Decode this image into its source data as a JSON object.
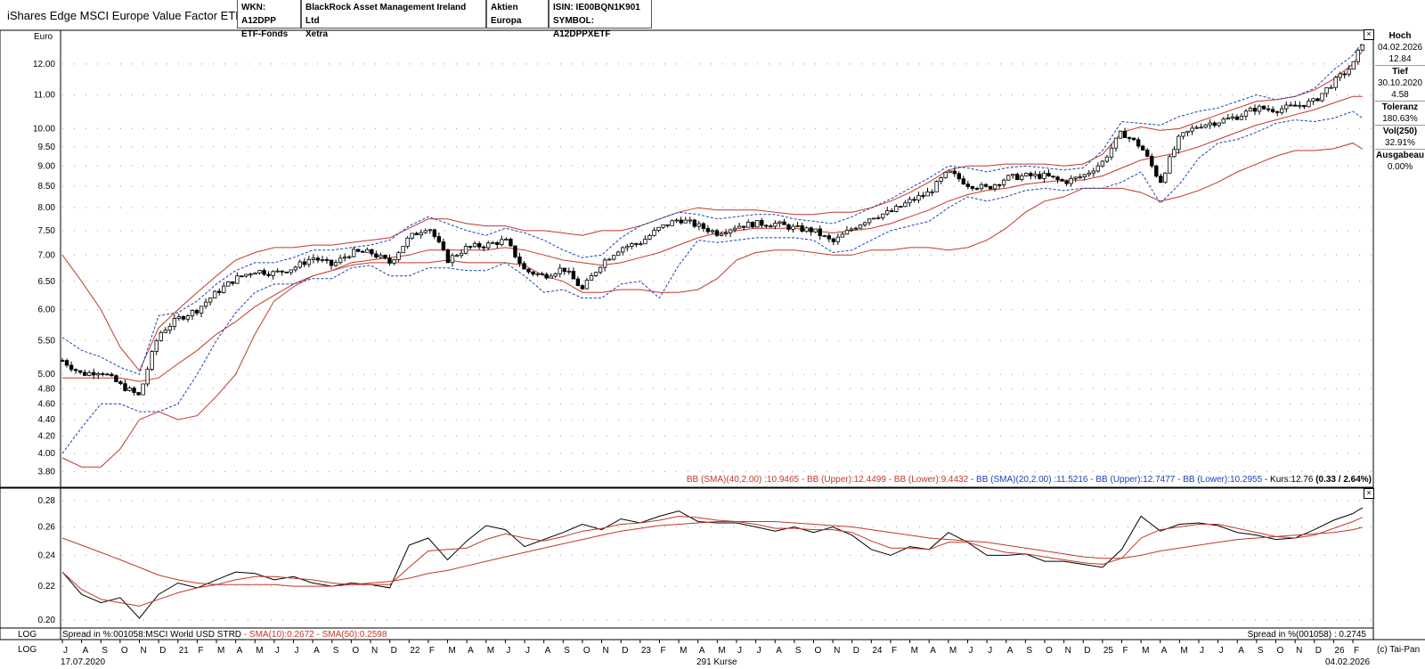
{
  "header": {
    "title": "iShares Edge MSCI Europe Value Factor ETF",
    "wkn": "WKN: A12DPP",
    "type": "ETF-Fonds",
    "issuer": "BlackRock Asset Management Ireland Ltd",
    "exchange": "Xetra",
    "category": "Aktien Europa",
    "isin": "ISIN: IE00BQN1K901",
    "symbol": "SYMBOL: A12DPPXETF"
  },
  "side_panel": {
    "high_label": "Hoch",
    "high_date": "04.02.2026",
    "high_value": "12.84",
    "low_label": "Tief",
    "low_date": "30.10.2020",
    "low_value": "4.58",
    "tol_label": "Toleranz",
    "tol_value": "180.63%",
    "vol_label": "Vol(250)",
    "vol_value": "32.91%",
    "fee_label": "Ausgabeau",
    "fee_value": "0.00%"
  },
  "legend_top": {
    "bb40": "BB (SMA)(40,2.00) :10.9465 - BB (Upper):12.4499 - BB (Lower):9.4432",
    "bb20": " - BB (SMA)(20,2.00) :11.5216 - BB (Upper):12.7477 - BB (Lower):10.2955",
    "kurs": " - Kurs:12.76 ",
    "change": "(0.33 / 2.64%)"
  },
  "legend_bottom": {
    "left_black": "Spread in %:001058:MSCI World USD STRD",
    "left_red": " - SMA(10):0.2672 - SMA(50):0.2598",
    "right": "Spread in %(001058) : 0.2745"
  },
  "footer": {
    "log1": "LOG",
    "log2": "LOG",
    "start_date": "17.07.2020",
    "count": "291 Kurse",
    "end_date": "04.02.2026",
    "copyright": "(c) Tai-Pan",
    "unit": "Euro"
  },
  "colors": {
    "bb40": "#c0392b",
    "bb20": "#1a3fb5",
    "candle": "#000000",
    "spread": "#000000",
    "sma": "#c0392b"
  },
  "chart_data": [
    {
      "type": "candlestick",
      "title": "",
      "ylabel": "Euro",
      "y_scale": "log",
      "ylim": [
        3.7,
        13.0
      ],
      "y_ticks": [
        3.8,
        4.0,
        4.2,
        4.4,
        4.6,
        4.8,
        5.0,
        5.5,
        6.0,
        6.5,
        7.0,
        7.5,
        8.0,
        8.5,
        9.0,
        9.5,
        10.0,
        11.0,
        12.0
      ],
      "x_range": [
        "17.07.2020",
        "04.02.2026"
      ],
      "x_ticks": [
        "J",
        "A",
        "S",
        "O",
        "N",
        "D",
        "21",
        "F",
        "M",
        "A",
        "M",
        "J",
        "J",
        "A",
        "S",
        "O",
        "N",
        "D",
        "22",
        "F",
        "M",
        "A",
        "M",
        "J",
        "J",
        "A",
        "S",
        "O",
        "N",
        "D",
        "23",
        "F",
        "M",
        "A",
        "M",
        "J",
        "J",
        "A",
        "S",
        "O",
        "N",
        "D",
        "24",
        "F",
        "M",
        "A",
        "M",
        "J",
        "J",
        "A",
        "S",
        "O",
        "N",
        "D",
        "25",
        "F",
        "M",
        "A",
        "M",
        "J",
        "J",
        "A",
        "S",
        "O",
        "N",
        "D",
        "26",
        "F"
      ],
      "x_months": [
        0,
        1,
        2,
        3,
        4,
        5,
        6,
        7,
        8,
        9,
        10,
        11,
        12,
        13,
        14,
        15,
        16,
        17,
        18,
        19,
        20,
        21,
        22,
        23,
        24,
        25,
        26,
        27,
        28,
        29,
        30,
        31,
        32,
        33,
        34,
        35,
        36,
        37,
        38,
        39,
        40,
        41,
        42,
        43,
        44,
        45,
        46,
        47,
        48,
        49,
        50,
        51,
        52,
        53,
        54,
        55,
        56,
        57,
        58,
        59,
        60,
        61,
        62,
        63,
        64,
        65,
        66,
        67
      ],
      "price_months": [
        0,
        1,
        2,
        3,
        4,
        5,
        6,
        7,
        8,
        9,
        10,
        11,
        12,
        13,
        14,
        15,
        16,
        17,
        18,
        19,
        20,
        21,
        22,
        23,
        24,
        25,
        26,
        27,
        28,
        29,
        30,
        31,
        32,
        33,
        34,
        35,
        36,
        37,
        38,
        39,
        40,
        41,
        42,
        43,
        44,
        45,
        46,
        47,
        48,
        49,
        50,
        51,
        52,
        53,
        54,
        55,
        56,
        57,
        58,
        59,
        60,
        61,
        62,
        63,
        64,
        65,
        66,
        67,
        67.5
      ],
      "price": [
        5.2,
        5.0,
        5.05,
        4.85,
        4.7,
        5.6,
        5.85,
        6.0,
        6.3,
        6.55,
        6.7,
        6.65,
        6.75,
        6.95,
        6.8,
        7.05,
        7.05,
        6.85,
        7.35,
        7.6,
        6.9,
        7.15,
        7.2,
        7.3,
        6.7,
        6.6,
        6.75,
        6.35,
        6.85,
        7.15,
        7.25,
        7.55,
        7.75,
        7.6,
        7.45,
        7.6,
        7.65,
        7.65,
        7.55,
        7.5,
        7.25,
        7.55,
        7.8,
        7.9,
        8.15,
        8.35,
        8.85,
        8.55,
        8.45,
        8.7,
        8.75,
        8.75,
        8.6,
        8.75,
        9.1,
        9.9,
        9.5,
        8.6,
        9.75,
        10.1,
        10.2,
        10.35,
        10.6,
        10.55,
        10.65,
        10.8,
        11.4,
        11.95,
        12.76
      ],
      "bb20_sma": [
        5.0,
        5.05,
        5.0,
        4.9,
        4.85,
        5.0,
        5.4,
        5.8,
        6.1,
        6.4,
        6.6,
        6.65,
        6.7,
        6.85,
        6.85,
        6.95,
        7.0,
        6.95,
        7.1,
        7.3,
        7.2,
        7.1,
        7.05,
        7.2,
        7.05,
        6.8,
        6.7,
        6.55,
        6.6,
        6.9,
        7.1,
        7.35,
        7.55,
        7.6,
        7.5,
        7.55,
        7.6,
        7.6,
        7.55,
        7.5,
        7.35,
        7.45,
        7.65,
        7.85,
        8.0,
        8.2,
        8.5,
        8.6,
        8.5,
        8.6,
        8.7,
        8.7,
        8.65,
        8.7,
        8.9,
        9.4,
        9.5,
        9.1,
        9.45,
        9.85,
        10.1,
        10.25,
        10.45,
        10.5,
        10.6,
        10.7,
        11.05,
        11.4,
        11.52
      ],
      "bb20_upper": [
        5.55,
        5.35,
        5.25,
        5.1,
        5.0,
        5.9,
        5.95,
        6.15,
        6.45,
        6.7,
        6.85,
        6.85,
        6.95,
        7.1,
        7.1,
        7.15,
        7.2,
        7.3,
        7.6,
        7.8,
        7.65,
        7.5,
        7.4,
        7.55,
        7.45,
        7.3,
        7.1,
        6.95,
        7.0,
        7.35,
        7.6,
        7.75,
        7.9,
        7.85,
        7.75,
        7.8,
        7.85,
        7.85,
        7.75,
        7.7,
        7.65,
        7.8,
        8.0,
        8.2,
        8.45,
        8.7,
        9.0,
        8.95,
        8.85,
        8.95,
        9.0,
        8.95,
        8.9,
        8.95,
        9.4,
        10.2,
        10.15,
        10.1,
        10.35,
        10.5,
        10.6,
        10.8,
        11.0,
        10.85,
        10.95,
        11.2,
        11.8,
        12.3,
        12.75
      ],
      "bb20_lower": [
        4.0,
        4.3,
        4.6,
        4.6,
        4.5,
        4.5,
        4.6,
        5.0,
        5.5,
        5.95,
        6.3,
        6.45,
        6.45,
        6.55,
        6.55,
        6.75,
        6.8,
        6.6,
        6.6,
        6.75,
        6.75,
        6.7,
        6.7,
        6.85,
        6.6,
        6.3,
        6.35,
        6.2,
        6.2,
        6.45,
        6.5,
        6.2,
        6.8,
        7.3,
        7.25,
        7.3,
        7.35,
        7.35,
        7.35,
        7.3,
        7.05,
        7.1,
        7.3,
        7.5,
        7.6,
        7.7,
        8.0,
        8.25,
        8.15,
        8.25,
        8.4,
        8.45,
        8.4,
        8.45,
        8.45,
        8.6,
        8.85,
        8.1,
        8.55,
        9.2,
        9.6,
        9.7,
        9.9,
        10.15,
        10.25,
        10.2,
        10.3,
        10.5,
        10.3
      ],
      "bb40_sma": [
        4.95,
        4.95,
        4.95,
        4.95,
        4.9,
        4.95,
        5.15,
        5.35,
        5.6,
        5.8,
        6.05,
        6.25,
        6.45,
        6.6,
        6.7,
        6.85,
        6.9,
        6.95,
        7.0,
        7.1,
        7.1,
        7.1,
        7.1,
        7.15,
        7.1,
        7.0,
        6.9,
        6.85,
        6.8,
        6.85,
        6.95,
        7.05,
        7.2,
        7.35,
        7.45,
        7.5,
        7.55,
        7.55,
        7.55,
        7.5,
        7.45,
        7.5,
        7.55,
        7.65,
        7.8,
        7.95,
        8.15,
        8.3,
        8.4,
        8.45,
        8.55,
        8.6,
        8.65,
        8.65,
        8.75,
        8.95,
        9.15,
        9.25,
        9.35,
        9.5,
        9.7,
        9.9,
        10.1,
        10.25,
        10.4,
        10.55,
        10.75,
        10.95,
        10.95
      ],
      "bb40_upper": [
        7.0,
        6.5,
        6.0,
        5.4,
        5.05,
        5.7,
        6.0,
        6.3,
        6.6,
        6.9,
        7.05,
        7.15,
        7.15,
        7.2,
        7.2,
        7.25,
        7.3,
        7.35,
        7.55,
        7.75,
        7.75,
        7.65,
        7.6,
        7.6,
        7.5,
        7.5,
        7.45,
        7.4,
        7.5,
        7.5,
        7.6,
        7.75,
        7.9,
        8.0,
        7.95,
        7.95,
        7.95,
        7.9,
        7.85,
        7.85,
        7.9,
        7.9,
        8.0,
        8.15,
        8.35,
        8.6,
        8.9,
        9.0,
        9.0,
        9.05,
        9.05,
        9.05,
        9.0,
        9.05,
        9.3,
        9.9,
        10.05,
        9.95,
        10.0,
        10.2,
        10.4,
        10.6,
        10.8,
        10.85,
        10.95,
        11.15,
        11.5,
        12.0,
        12.45
      ],
      "bb40_lower": [
        3.95,
        3.85,
        3.85,
        4.05,
        4.4,
        4.5,
        4.4,
        4.45,
        4.7,
        5.0,
        5.6,
        6.15,
        6.4,
        6.6,
        6.7,
        6.8,
        6.85,
        6.85,
        6.85,
        6.85,
        6.9,
        6.85,
        6.85,
        6.85,
        6.8,
        6.6,
        6.5,
        6.3,
        6.3,
        6.35,
        6.35,
        6.3,
        6.3,
        6.35,
        6.55,
        6.9,
        7.05,
        7.1,
        7.1,
        7.05,
        7.0,
        7.0,
        7.1,
        7.1,
        7.15,
        7.15,
        7.1,
        7.15,
        7.3,
        7.55,
        7.9,
        8.15,
        8.25,
        8.45,
        8.45,
        8.45,
        8.35,
        8.15,
        8.25,
        8.4,
        8.6,
        8.85,
        9.05,
        9.25,
        9.4,
        9.4,
        9.45,
        9.6,
        9.44
      ]
    },
    {
      "type": "line",
      "title": "",
      "y_scale": "log",
      "ylim": [
        0.198,
        0.285
      ],
      "y_ticks": [
        0.2,
        0.22,
        0.24,
        0.26,
        0.28
      ],
      "series": [
        {
          "name": "Spread in %:001058:MSCI World USD STRD",
          "x": [
            0,
            1,
            2,
            3,
            4,
            5,
            6,
            7,
            8,
            9,
            10,
            11,
            12,
            13,
            14,
            15,
            16,
            17,
            18,
            19,
            20,
            21,
            22,
            23,
            24,
            25,
            26,
            27,
            28,
            29,
            30,
            31,
            32,
            33,
            34,
            35,
            36,
            37,
            38,
            39,
            40,
            41,
            42,
            43,
            44,
            45,
            46,
            47,
            48,
            49,
            50,
            51,
            52,
            53,
            54,
            55,
            56,
            57,
            58,
            59,
            60,
            61,
            62,
            63,
            64,
            65,
            66,
            67,
            67.5
          ],
          "values": [
            0.229,
            0.215,
            0.21,
            0.213,
            0.201,
            0.215,
            0.222,
            0.219,
            0.224,
            0.229,
            0.228,
            0.224,
            0.226,
            0.222,
            0.22,
            0.222,
            0.221,
            0.219,
            0.247,
            0.252,
            0.237,
            0.25,
            0.261,
            0.258,
            0.246,
            0.251,
            0.256,
            0.262,
            0.258,
            0.266,
            0.263,
            0.268,
            0.272,
            0.264,
            0.263,
            0.263,
            0.26,
            0.257,
            0.26,
            0.256,
            0.26,
            0.254,
            0.244,
            0.24,
            0.246,
            0.244,
            0.256,
            0.249,
            0.24,
            0.24,
            0.241,
            0.236,
            0.236,
            0.234,
            0.232,
            0.244,
            0.268,
            0.257,
            0.262,
            0.263,
            0.261,
            0.256,
            0.254,
            0.251,
            0.252,
            0.258,
            0.265,
            0.27,
            0.2745
          ]
        },
        {
          "name": "SMA(10)",
          "x": [
            0,
            1,
            2,
            3,
            4,
            5,
            6,
            7,
            8,
            9,
            10,
            11,
            12,
            13,
            14,
            15,
            16,
            17,
            18,
            19,
            20,
            21,
            22,
            23,
            24,
            25,
            26,
            27,
            28,
            29,
            30,
            31,
            32,
            33,
            34,
            35,
            36,
            37,
            38,
            39,
            40,
            41,
            42,
            43,
            44,
            45,
            46,
            47,
            48,
            49,
            50,
            51,
            52,
            53,
            54,
            55,
            56,
            57,
            58,
            59,
            60,
            61,
            62,
            63,
            64,
            65,
            66,
            67,
            67.5
          ],
          "values": [
            0.229,
            0.218,
            0.212,
            0.21,
            0.208,
            0.212,
            0.216,
            0.219,
            0.221,
            0.224,
            0.226,
            0.226,
            0.225,
            0.224,
            0.222,
            0.221,
            0.221,
            0.221,
            0.232,
            0.243,
            0.244,
            0.245,
            0.251,
            0.255,
            0.252,
            0.25,
            0.253,
            0.257,
            0.259,
            0.262,
            0.263,
            0.265,
            0.268,
            0.267,
            0.265,
            0.264,
            0.262,
            0.259,
            0.259,
            0.258,
            0.258,
            0.256,
            0.25,
            0.245,
            0.245,
            0.244,
            0.249,
            0.249,
            0.245,
            0.242,
            0.241,
            0.239,
            0.237,
            0.235,
            0.234,
            0.238,
            0.252,
            0.258,
            0.26,
            0.262,
            0.262,
            0.259,
            0.256,
            0.253,
            0.252,
            0.254,
            0.259,
            0.264,
            0.2672
          ]
        },
        {
          "name": "SMA(50)",
          "x": [
            0,
            1,
            2,
            3,
            4,
            5,
            6,
            7,
            8,
            9,
            10,
            11,
            12,
            13,
            14,
            15,
            16,
            17,
            18,
            19,
            20,
            21,
            22,
            23,
            24,
            25,
            26,
            27,
            28,
            29,
            30,
            31,
            32,
            33,
            34,
            35,
            36,
            37,
            38,
            39,
            40,
            41,
            42,
            43,
            44,
            45,
            46,
            47,
            48,
            49,
            50,
            51,
            52,
            53,
            54,
            55,
            56,
            57,
            58,
            59,
            60,
            61,
            62,
            63,
            64,
            65,
            66,
            67,
            67.5
          ],
          "values": [
            0.252,
            0.247,
            0.242,
            0.237,
            0.232,
            0.227,
            0.224,
            0.222,
            0.221,
            0.221,
            0.221,
            0.221,
            0.22,
            0.22,
            0.22,
            0.221,
            0.222,
            0.223,
            0.225,
            0.228,
            0.23,
            0.233,
            0.236,
            0.239,
            0.242,
            0.245,
            0.248,
            0.251,
            0.254,
            0.257,
            0.259,
            0.261,
            0.262,
            0.263,
            0.264,
            0.264,
            0.264,
            0.264,
            0.263,
            0.262,
            0.261,
            0.26,
            0.258,
            0.256,
            0.254,
            0.252,
            0.251,
            0.25,
            0.249,
            0.247,
            0.245,
            0.243,
            0.241,
            0.239,
            0.238,
            0.238,
            0.24,
            0.243,
            0.245,
            0.247,
            0.249,
            0.251,
            0.252,
            0.253,
            0.254,
            0.255,
            0.256,
            0.258,
            0.2598
          ]
        }
      ]
    }
  ]
}
